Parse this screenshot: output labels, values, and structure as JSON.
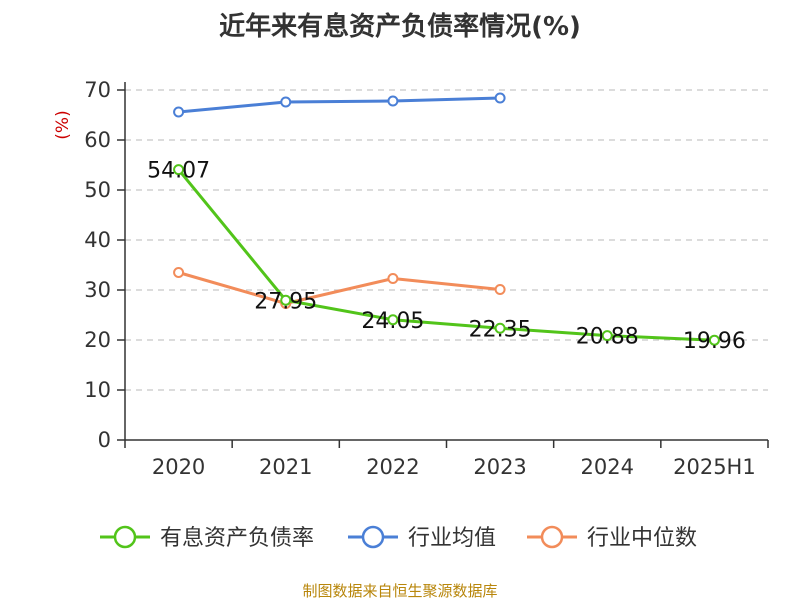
{
  "title": "近年来有息资产负债率情况(%)",
  "source": "制图数据来自恒生聚源数据库",
  "chart_data": {
    "type": "line",
    "ylabel": "(%)",
    "ylim": [
      0,
      70
    ],
    "yticks": [
      0,
      10,
      20,
      30,
      40,
      50,
      60,
      70
    ],
    "grid": true,
    "legend_position": "bottom",
    "categories": [
      "2020",
      "2021",
      "2022",
      "2023",
      "2024",
      "2025H1"
    ],
    "series": [
      {
        "name": "有息资产负债率",
        "color": "#52c41a",
        "values": [
          54.07,
          27.95,
          24.05,
          22.35,
          20.88,
          19.96
        ],
        "labels": [
          "54.07",
          "27.95",
          "24.05",
          "22.35",
          "20.88",
          "19.96"
        ]
      },
      {
        "name": "行业均值",
        "color": "#4a7fd6",
        "values": [
          65.6,
          67.6,
          67.8,
          68.4,
          null,
          null
        ]
      },
      {
        "name": "行业中位数",
        "color": "#f28c5a",
        "values": [
          33.5,
          27.3,
          32.3,
          30.1,
          null,
          null
        ]
      }
    ]
  }
}
